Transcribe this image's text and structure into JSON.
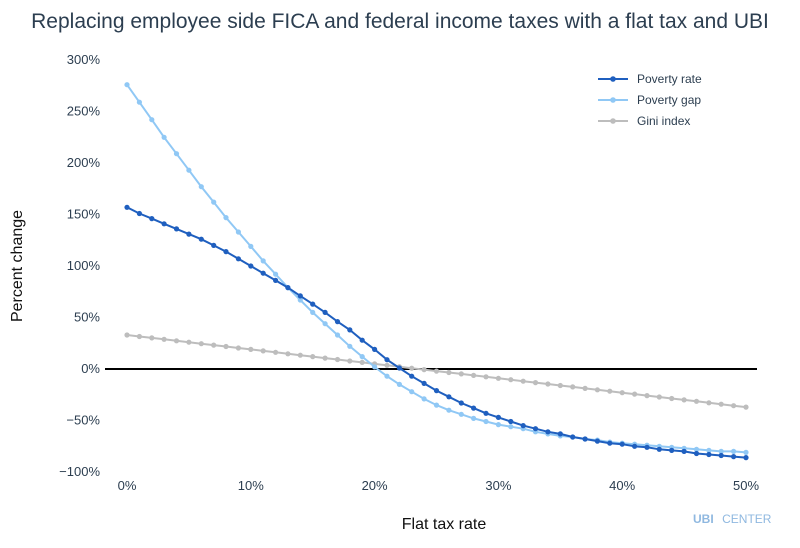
{
  "chart_data": {
    "type": "line",
    "title": "Replacing employee side FICA and federal income taxes with a flat tax and UBI",
    "xlabel": "Flat tax rate",
    "ylabel": "Percent change",
    "xlim": [
      0,
      50
    ],
    "ylim": [
      -100,
      300
    ],
    "x_ticks": [
      0,
      10,
      20,
      30,
      40,
      50
    ],
    "x_tick_labels": [
      "0%",
      "10%",
      "20%",
      "30%",
      "40%",
      "50%"
    ],
    "y_ticks": [
      300,
      250,
      200,
      150,
      100,
      50,
      0,
      -50,
      -100
    ],
    "y_tick_labels": [
      "300%",
      "250%",
      "200%",
      "150%",
      "100%",
      "50%",
      "0%",
      "−50%",
      "−100%"
    ],
    "grid": false,
    "zero_line": true,
    "legend_position": "top-right",
    "x": [
      0,
      1,
      2,
      3,
      4,
      5,
      6,
      7,
      8,
      9,
      10,
      11,
      12,
      13,
      14,
      15,
      16,
      17,
      18,
      19,
      20,
      21,
      22,
      23,
      24,
      25,
      26,
      27,
      28,
      29,
      30,
      31,
      32,
      33,
      34,
      35,
      36,
      37,
      38,
      39,
      40,
      41,
      42,
      43,
      44,
      45,
      46,
      47,
      48,
      49,
      50
    ],
    "series": [
      {
        "name": "Poverty rate",
        "color": "#1f5fbf",
        "values": [
          157,
          151,
          146,
          141,
          136,
          131,
          126,
          120,
          114,
          107,
          100,
          93,
          86,
          79,
          71,
          63,
          55,
          46,
          38,
          28,
          19,
          9,
          1,
          -7,
          -14,
          -21,
          -27,
          -33,
          -38,
          -43,
          -47,
          -51,
          -55,
          -58,
          -61,
          -63,
          -66,
          -68,
          -70,
          -72,
          -73,
          -75,
          -76,
          -78,
          -79,
          -80,
          -82,
          -83,
          -84,
          -85,
          -86
        ]
      },
      {
        "name": "Poverty gap",
        "color": "#90c8f5",
        "values": [
          276,
          259,
          242,
          225,
          209,
          193,
          177,
          162,
          147,
          133,
          119,
          105,
          92,
          79,
          67,
          55,
          44,
          33,
          22,
          12,
          2,
          -7,
          -15,
          -22,
          -29,
          -35,
          -40,
          -44,
          -48,
          -51,
          -54,
          -56,
          -58,
          -61,
          -63,
          -65,
          -66,
          -68,
          -69,
          -71,
          -72,
          -73,
          -74,
          -75,
          -76,
          -77,
          -78,
          -79,
          -80,
          -80,
          -81
        ]
      },
      {
        "name": "Gini index",
        "color": "#bdbdbd",
        "values": [
          33,
          31.6,
          30.2,
          28.8,
          27.4,
          26,
          24.6,
          23.2,
          21.8,
          20.4,
          19,
          17.6,
          16.2,
          14.8,
          13.4,
          12,
          10.6,
          9.2,
          7.8,
          6.4,
          5,
          3.6,
          2.2,
          0.8,
          -0.6,
          -2,
          -3.4,
          -4.8,
          -6.2,
          -7.6,
          -9,
          -10.4,
          -11.8,
          -13.2,
          -14.6,
          -16,
          -17.4,
          -18.8,
          -20.2,
          -21.6,
          -23,
          -24.4,
          -25.8,
          -27.2,
          -28.6,
          -30,
          -31.4,
          -32.8,
          -34.2,
          -35.6,
          -37
        ]
      }
    ]
  },
  "logo": {
    "brand": "UBI",
    "suffix": "CENTER"
  }
}
